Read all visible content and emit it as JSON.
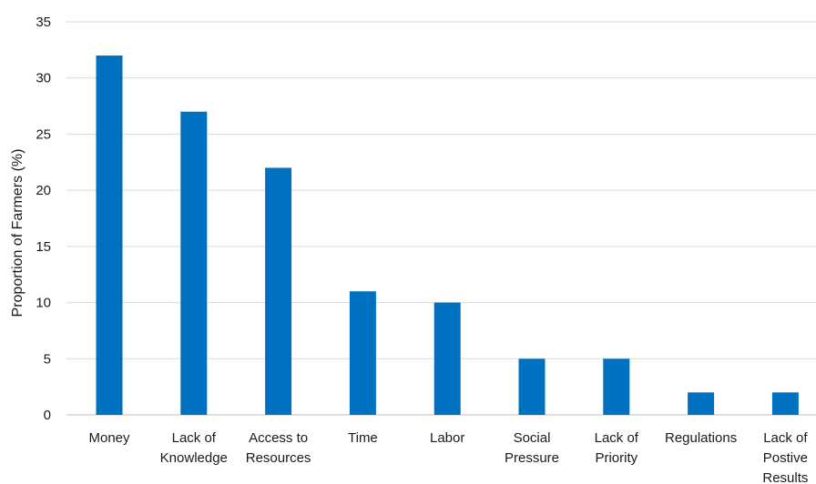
{
  "chart_data": {
    "type": "bar",
    "title": "",
    "xlabel": "",
    "ylabel": "Proportion of Farmers (%)",
    "ylim": [
      0,
      35
    ],
    "yticks": [
      0,
      5,
      10,
      15,
      20,
      25,
      30,
      35
    ],
    "grid": true,
    "categories": [
      [
        "Money"
      ],
      [
        "Lack of",
        "Knowledge"
      ],
      [
        "Access to",
        "Resources"
      ],
      [
        "Time"
      ],
      [
        "Labor"
      ],
      [
        "Social",
        "Pressure"
      ],
      [
        "Lack of",
        "Priority"
      ],
      [
        "Regulations"
      ],
      [
        "Lack of",
        "Postive",
        "Results"
      ]
    ],
    "values": [
      32,
      27,
      22,
      11,
      10,
      5,
      5,
      2,
      2
    ],
    "colors": {
      "bar": "#0070C0",
      "grid": "#d9d9d9",
      "axis": "#bfbfbf"
    }
  }
}
